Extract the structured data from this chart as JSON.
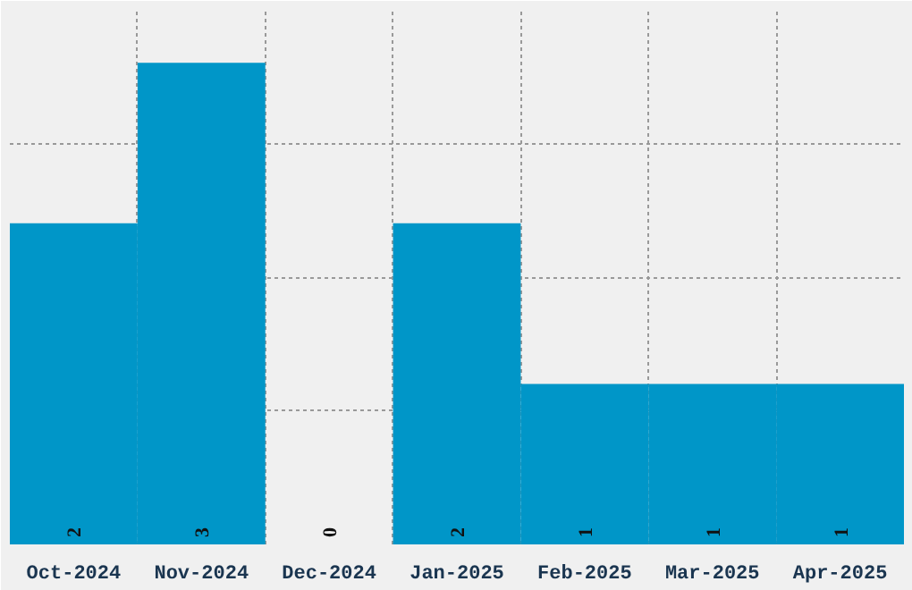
{
  "chart_data": {
    "type": "bar",
    "categories": [
      "Oct-2024",
      "Nov-2024",
      "Dec-2024",
      "Jan-2025",
      "Feb-2025",
      "Mar-2025",
      "Apr-2025"
    ],
    "values": [
      2,
      3,
      0,
      2,
      1,
      1,
      1
    ],
    "color": "#0096c8",
    "data_labels": true,
    "ylim": [
      0,
      3.33
    ],
    "grid": true,
    "tick_labels": "x"
  }
}
